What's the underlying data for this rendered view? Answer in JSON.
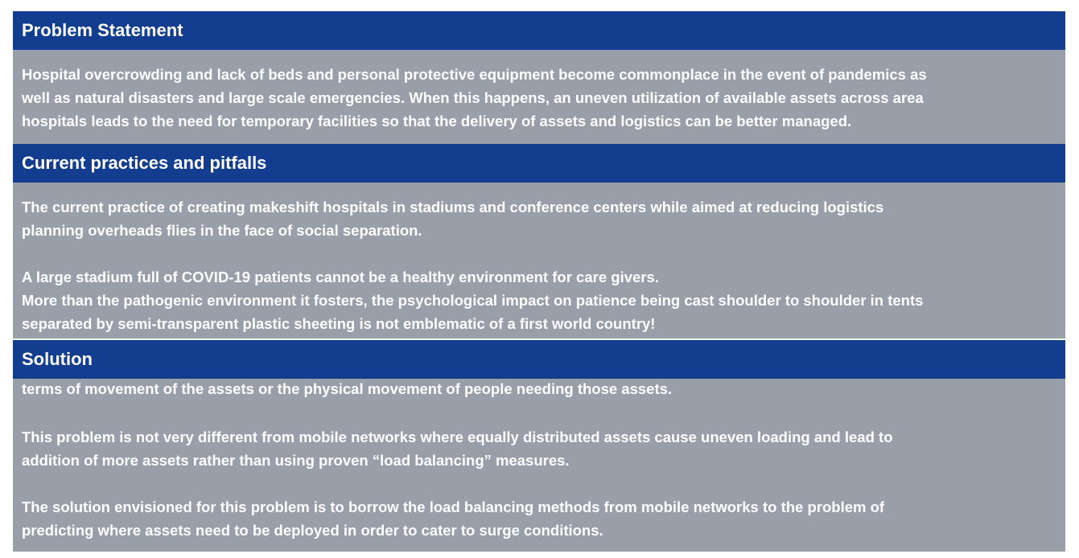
{
  "colors": {
    "header_bg": "#133E8F",
    "body_bg": "#989FA9",
    "text": "#FFFFFF"
  },
  "sections": [
    {
      "title": "Problem Statement",
      "lines": [
        "Hospital overcrowding and lack of beds and personal protective equipment become commonplace in the event of pandemics as",
        "well as natural disasters and large scale emergencies. When this happens, an uneven utilization of available assets across area",
        "hospitals leads to the need for temporary facilities so that the delivery of assets and logistics can be better managed."
      ]
    },
    {
      "title": "Current practices and pitfalls",
      "lines": [
        "The current practice of creating makeshift hospitals in stadiums and conference centers while aimed at reducing logistics",
        "planning overheads flies in the face of social separation.",
        "",
        "A large stadium full of COVID-19 patients cannot be a healthy environment for care givers.",
        "More than the pathogenic environment it fosters, the psychological impact on patience being cast shoulder to shoulder in tents",
        "separated by semi-transparent plastic sheeting is not emblematic of a first world country!"
      ]
    },
    {
      "title": "Solution",
      "lines": [
        "terms of movement of the assets or the physical movement of people needing those assets.",
        "",
        "This problem is not very different from mobile networks where equally distributed assets cause uneven loading and lead to",
        "addition of more assets rather than using proven “load balancing” measures.",
        "",
        "The solution envisioned for this problem is to borrow the load balancing methods from mobile networks to the problem of",
        "predicting where assets need to be deployed in order to cater to surge conditions."
      ]
    }
  ]
}
